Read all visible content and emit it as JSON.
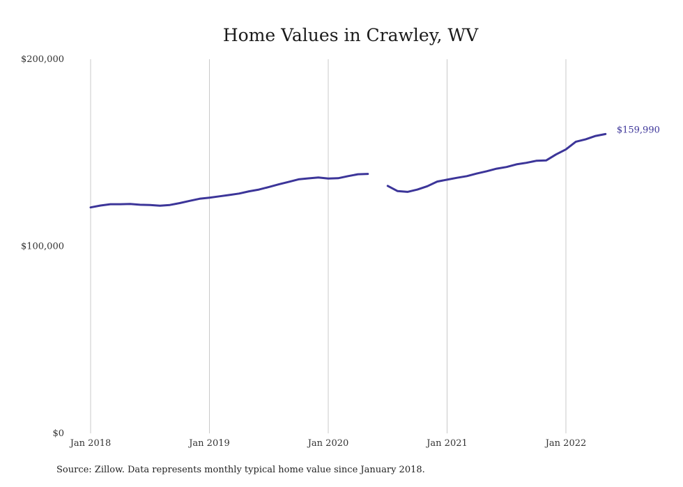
{
  "chart_data": {
    "type": "line",
    "title": "Home Values in Crawley, WV",
    "xlabel": "",
    "ylabel": "",
    "ylim": [
      0,
      200000
    ],
    "x_ticks": [
      "Jan 2018",
      "Jan 2019",
      "Jan 2020",
      "Jan 2021",
      "Jan 2022"
    ],
    "y_ticks": [
      "$0",
      "$100,000",
      "$200,000"
    ],
    "y_tick_values": [
      0,
      100000,
      200000
    ],
    "grid": "vertical",
    "series": [
      {
        "color": "#3c3599",
        "points": [
          [
            "2018-01",
            120800
          ],
          [
            "2018-02",
            121800
          ],
          [
            "2018-03",
            122500
          ],
          [
            "2018-04",
            122500
          ],
          [
            "2018-05",
            122600
          ],
          [
            "2018-06",
            122200
          ],
          [
            "2018-07",
            122100
          ],
          [
            "2018-08",
            121700
          ],
          [
            "2018-09",
            122100
          ],
          [
            "2018-10",
            123100
          ],
          [
            "2018-11",
            124300
          ],
          [
            "2018-12",
            125400
          ],
          [
            "2019-01",
            126000
          ],
          [
            "2019-02",
            126700
          ],
          [
            "2019-03",
            127400
          ],
          [
            "2019-04",
            128200
          ],
          [
            "2019-05",
            129400
          ],
          [
            "2019-06",
            130300
          ],
          [
            "2019-07",
            131700
          ],
          [
            "2019-08",
            133100
          ],
          [
            "2019-09",
            134400
          ],
          [
            "2019-10",
            135800
          ],
          [
            "2019-11",
            136300
          ],
          [
            "2019-12",
            136800
          ],
          [
            "2020-01",
            136200
          ],
          [
            "2020-02",
            136400
          ],
          [
            "2020-03",
            137500
          ],
          [
            "2020-04",
            138500
          ],
          [
            "2020-05",
            138700
          ],
          [
            "2020-06",
            null
          ],
          [
            "2020-07",
            132300
          ],
          [
            "2020-08",
            129500
          ],
          [
            "2020-09",
            129100
          ],
          [
            "2020-10",
            130300
          ],
          [
            "2020-11",
            132100
          ],
          [
            "2020-12",
            134600
          ],
          [
            "2021-01",
            135600
          ],
          [
            "2021-02",
            136600
          ],
          [
            "2021-03",
            137500
          ],
          [
            "2021-04",
            138900
          ],
          [
            "2021-05",
            140100
          ],
          [
            "2021-06",
            141500
          ],
          [
            "2021-07",
            142400
          ],
          [
            "2021-08",
            143800
          ],
          [
            "2021-09",
            144600
          ],
          [
            "2021-10",
            145700
          ],
          [
            "2021-11",
            145900
          ],
          [
            "2021-12",
            149100
          ],
          [
            "2022-01",
            151800
          ],
          [
            "2022-02",
            155900
          ],
          [
            "2022-03",
            157200
          ],
          [
            "2022-04",
            159000
          ],
          [
            "2022-05",
            159990
          ]
        ]
      }
    ],
    "end_label": "$159,990",
    "note": "Source: Zillow. Data represents monthly typical home value since January 2018."
  }
}
